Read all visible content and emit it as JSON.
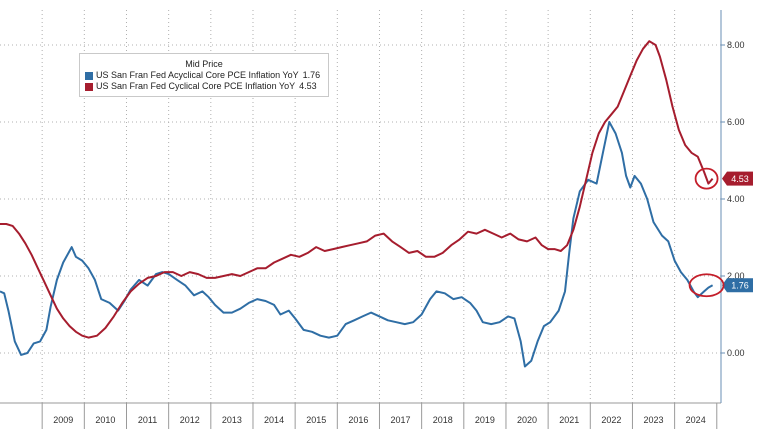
{
  "chart_data": {
    "type": "line",
    "legend_title": "Mid Price",
    "legend_placement": "top-left",
    "ylim": [
      -1.2,
      9.0
    ],
    "y_ticks": [
      0.0,
      2.0,
      4.0,
      6.0,
      8.0
    ],
    "y_tick_labels": [
      "0.00",
      "2.00",
      "4.00",
      "6.00",
      "8.00"
    ],
    "xlim": [
      2008.0,
      2025.1
    ],
    "x_tick_labels": [
      "2009",
      "2010",
      "2011",
      "2012",
      "2013",
      "2014",
      "2015",
      "2016",
      "2017",
      "2018",
      "2019",
      "2020",
      "2021",
      "2022",
      "2023",
      "2024"
    ],
    "grid": true,
    "series": [
      {
        "name": "US San Fran Fed Acyclical Core PCE Inflation YoY",
        "last_value": "1.76",
        "color": "#2f6ea5",
        "points": [
          [
            2008.0,
            1.6
          ],
          [
            2008.1,
            1.55
          ],
          [
            2008.2,
            1.1
          ],
          [
            2008.35,
            0.3
          ],
          [
            2008.5,
            -0.05
          ],
          [
            2008.65,
            0.0
          ],
          [
            2008.8,
            0.25
          ],
          [
            2008.95,
            0.3
          ],
          [
            2009.1,
            0.6
          ],
          [
            2009.2,
            1.2
          ],
          [
            2009.35,
            1.9
          ],
          [
            2009.5,
            2.35
          ],
          [
            2009.7,
            2.75
          ],
          [
            2009.8,
            2.5
          ],
          [
            2009.95,
            2.4
          ],
          [
            2010.1,
            2.2
          ],
          [
            2010.25,
            1.9
          ],
          [
            2010.4,
            1.4
          ],
          [
            2010.6,
            1.3
          ],
          [
            2010.8,
            1.1
          ],
          [
            2010.95,
            1.35
          ],
          [
            2011.1,
            1.65
          ],
          [
            2011.3,
            1.9
          ],
          [
            2011.5,
            1.75
          ],
          [
            2011.7,
            2.05
          ],
          [
            2011.85,
            2.1
          ],
          [
            2012.0,
            2.05
          ],
          [
            2012.2,
            1.9
          ],
          [
            2012.4,
            1.75
          ],
          [
            2012.6,
            1.5
          ],
          [
            2012.8,
            1.6
          ],
          [
            2012.95,
            1.45
          ],
          [
            2013.1,
            1.25
          ],
          [
            2013.3,
            1.05
          ],
          [
            2013.5,
            1.05
          ],
          [
            2013.7,
            1.15
          ],
          [
            2013.9,
            1.3
          ],
          [
            2014.1,
            1.4
          ],
          [
            2014.3,
            1.35
          ],
          [
            2014.5,
            1.25
          ],
          [
            2014.65,
            1.0
          ],
          [
            2014.85,
            1.1
          ],
          [
            2015.0,
            0.9
          ],
          [
            2015.2,
            0.6
          ],
          [
            2015.4,
            0.55
          ],
          [
            2015.6,
            0.45
          ],
          [
            2015.8,
            0.4
          ],
          [
            2016.0,
            0.45
          ],
          [
            2016.2,
            0.75
          ],
          [
            2016.4,
            0.85
          ],
          [
            2016.6,
            0.95
          ],
          [
            2016.8,
            1.05
          ],
          [
            2017.0,
            0.95
          ],
          [
            2017.2,
            0.85
          ],
          [
            2017.4,
            0.8
          ],
          [
            2017.6,
            0.75
          ],
          [
            2017.8,
            0.8
          ],
          [
            2018.0,
            1.0
          ],
          [
            2018.2,
            1.4
          ],
          [
            2018.35,
            1.6
          ],
          [
            2018.55,
            1.55
          ],
          [
            2018.75,
            1.4
          ],
          [
            2018.95,
            1.45
          ],
          [
            2019.15,
            1.3
          ],
          [
            2019.3,
            1.1
          ],
          [
            2019.45,
            0.8
          ],
          [
            2019.65,
            0.75
          ],
          [
            2019.85,
            0.8
          ],
          [
            2020.05,
            0.95
          ],
          [
            2020.2,
            0.9
          ],
          [
            2020.35,
            0.3
          ],
          [
            2020.45,
            -0.35
          ],
          [
            2020.6,
            -0.2
          ],
          [
            2020.75,
            0.3
          ],
          [
            2020.9,
            0.7
          ],
          [
            2021.05,
            0.8
          ],
          [
            2021.25,
            1.1
          ],
          [
            2021.4,
            1.6
          ],
          [
            2021.5,
            2.6
          ],
          [
            2021.6,
            3.5
          ],
          [
            2021.75,
            4.2
          ],
          [
            2021.95,
            4.5
          ],
          [
            2022.15,
            4.4
          ],
          [
            2022.3,
            5.2
          ],
          [
            2022.45,
            6.0
          ],
          [
            2022.6,
            5.7
          ],
          [
            2022.75,
            5.2
          ],
          [
            2022.85,
            4.6
          ],
          [
            2022.95,
            4.3
          ],
          [
            2023.05,
            4.6
          ],
          [
            2023.2,
            4.4
          ],
          [
            2023.35,
            4.0
          ],
          [
            2023.5,
            3.4
          ],
          [
            2023.7,
            3.05
          ],
          [
            2023.85,
            2.9
          ],
          [
            2024.0,
            2.4
          ],
          [
            2024.15,
            2.1
          ],
          [
            2024.3,
            1.9
          ],
          [
            2024.45,
            1.6
          ],
          [
            2024.55,
            1.45
          ],
          [
            2024.7,
            1.6
          ],
          [
            2024.8,
            1.7
          ],
          [
            2024.9,
            1.76
          ]
        ]
      },
      {
        "name": "US San Fran Fed Cyclical Core PCE Inflation YoY",
        "last_value": "4.53",
        "color": "#a61d2e",
        "points": [
          [
            2008.0,
            3.35
          ],
          [
            2008.15,
            3.35
          ],
          [
            2008.3,
            3.3
          ],
          [
            2008.45,
            3.1
          ],
          [
            2008.6,
            2.85
          ],
          [
            2008.75,
            2.55
          ],
          [
            2008.9,
            2.2
          ],
          [
            2009.05,
            1.85
          ],
          [
            2009.2,
            1.5
          ],
          [
            2009.35,
            1.15
          ],
          [
            2009.5,
            0.9
          ],
          [
            2009.65,
            0.7
          ],
          [
            2009.8,
            0.55
          ],
          [
            2009.95,
            0.45
          ],
          [
            2010.1,
            0.4
          ],
          [
            2010.3,
            0.45
          ],
          [
            2010.5,
            0.65
          ],
          [
            2010.7,
            0.95
          ],
          [
            2010.9,
            1.3
          ],
          [
            2011.1,
            1.6
          ],
          [
            2011.3,
            1.8
          ],
          [
            2011.5,
            1.95
          ],
          [
            2011.7,
            2.0
          ],
          [
            2011.9,
            2.1
          ],
          [
            2012.1,
            2.1
          ],
          [
            2012.3,
            2.0
          ],
          [
            2012.5,
            2.1
          ],
          [
            2012.7,
            2.05
          ],
          [
            2012.9,
            1.95
          ],
          [
            2013.1,
            1.95
          ],
          [
            2013.3,
            2.0
          ],
          [
            2013.5,
            2.05
          ],
          [
            2013.7,
            2.0
          ],
          [
            2013.9,
            2.1
          ],
          [
            2014.1,
            2.2
          ],
          [
            2014.3,
            2.2
          ],
          [
            2014.5,
            2.35
          ],
          [
            2014.7,
            2.45
          ],
          [
            2014.9,
            2.55
          ],
          [
            2015.1,
            2.5
          ],
          [
            2015.3,
            2.6
          ],
          [
            2015.5,
            2.75
          ],
          [
            2015.7,
            2.65
          ],
          [
            2015.9,
            2.7
          ],
          [
            2016.1,
            2.75
          ],
          [
            2016.3,
            2.8
          ],
          [
            2016.5,
            2.85
          ],
          [
            2016.7,
            2.9
          ],
          [
            2016.9,
            3.05
          ],
          [
            2017.1,
            3.1
          ],
          [
            2017.3,
            2.9
          ],
          [
            2017.5,
            2.75
          ],
          [
            2017.7,
            2.6
          ],
          [
            2017.9,
            2.65
          ],
          [
            2018.1,
            2.5
          ],
          [
            2018.3,
            2.5
          ],
          [
            2018.5,
            2.6
          ],
          [
            2018.7,
            2.8
          ],
          [
            2018.9,
            2.95
          ],
          [
            2019.1,
            3.15
          ],
          [
            2019.3,
            3.1
          ],
          [
            2019.5,
            3.2
          ],
          [
            2019.7,
            3.1
          ],
          [
            2019.9,
            3.0
          ],
          [
            2020.1,
            3.1
          ],
          [
            2020.3,
            2.95
          ],
          [
            2020.5,
            2.9
          ],
          [
            2020.7,
            3.0
          ],
          [
            2020.85,
            2.8
          ],
          [
            2021.0,
            2.7
          ],
          [
            2021.15,
            2.7
          ],
          [
            2021.3,
            2.65
          ],
          [
            2021.45,
            2.8
          ],
          [
            2021.6,
            3.2
          ],
          [
            2021.75,
            3.8
          ],
          [
            2021.9,
            4.5
          ],
          [
            2022.05,
            5.2
          ],
          [
            2022.2,
            5.7
          ],
          [
            2022.35,
            6.0
          ],
          [
            2022.5,
            6.2
          ],
          [
            2022.65,
            6.4
          ],
          [
            2022.8,
            6.8
          ],
          [
            2022.95,
            7.2
          ],
          [
            2023.1,
            7.6
          ],
          [
            2023.25,
            7.9
          ],
          [
            2023.4,
            8.1
          ],
          [
            2023.55,
            8.0
          ],
          [
            2023.65,
            7.7
          ],
          [
            2023.8,
            7.1
          ],
          [
            2023.95,
            6.4
          ],
          [
            2024.1,
            5.8
          ],
          [
            2024.25,
            5.4
          ],
          [
            2024.4,
            5.2
          ],
          [
            2024.55,
            5.1
          ],
          [
            2024.7,
            4.7
          ],
          [
            2024.8,
            4.4
          ],
          [
            2024.9,
            4.53
          ]
        ]
      }
    ]
  },
  "legend": {
    "title": "Mid Price",
    "items": [
      {
        "label": "US San Fran Fed Acyclical Core PCE Inflation YoY",
        "value": "1.76",
        "color": "#2f6ea5"
      },
      {
        "label": "US San Fran Fed Cyclical Core PCE Inflation YoY",
        "value": "4.53",
        "color": "#a61d2e"
      }
    ]
  },
  "colors": {
    "acyclical": "#2f6ea5",
    "cyclical": "#a61d2e",
    "highlight_circle": "#c41e2a",
    "grid": "#b8b8b8"
  }
}
